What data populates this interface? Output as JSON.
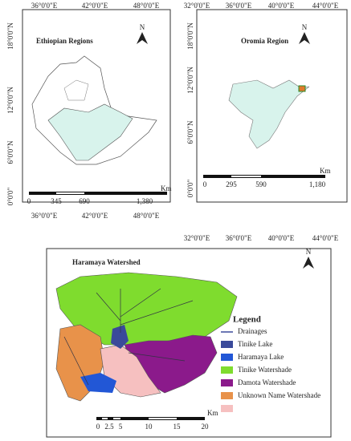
{
  "panels": [
    {
      "title": "Ethiopian Regions",
      "north": "N",
      "top_labels": [
        "36°0'0\"E",
        "42°0'0\"E",
        "48°0'0\"E"
      ],
      "bottom_labels": [
        "36°0'0\"E",
        "42°0'0\"E",
        "48°0'0\"E"
      ],
      "left_labels": [
        "18°0'0\"N",
        "12°0'0\"N",
        "6°0'0\"N",
        "0°0'0\""
      ],
      "scale": {
        "labels": [
          "0",
          "345",
          "690",
          "1,380"
        ],
        "unit": "Km"
      }
    },
    {
      "title": "Oromia Region",
      "north": "N",
      "top_labels": [
        "32°0'0\"E",
        "36°0'0\"E",
        "40°0'0\"E",
        "44°0'0\"E"
      ],
      "bottom_labels": [
        "32°0'0\"E",
        "36°0'0\"E",
        "40°0'0\"E",
        "44°0'0\"E"
      ],
      "left_labels": [
        "18°0'0\"N",
        "12°0'0\"N",
        "6°0'0\"N",
        "0°0'0\""
      ],
      "scale": {
        "labels": [
          "0",
          "295",
          "590",
          "1,180"
        ],
        "unit": "Km"
      }
    }
  ],
  "watershed": {
    "title": "Haramaya Watershed",
    "north": "N",
    "legend": {
      "title": "Legend",
      "items": [
        "Drainages",
        "Tinike Lake",
        "Haramaya Lake",
        "Tinike Watershade",
        "Damota Watershade",
        "Unknown Name Watershade"
      ]
    },
    "scale": {
      "labels": [
        "0",
        "2.5",
        "5",
        "10",
        "15",
        "20"
      ],
      "unit": "Km"
    }
  }
}
